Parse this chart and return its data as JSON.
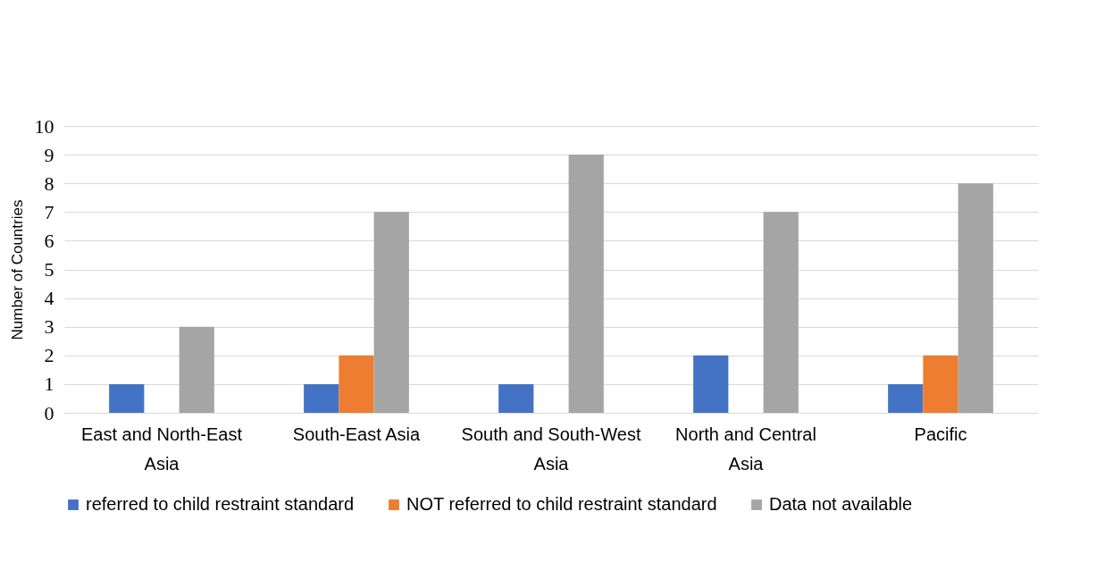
{
  "chart_data": {
    "type": "bar",
    "ylabel": "Number of Countries",
    "categories": [
      "East and North-East Asia",
      "South-East Asia",
      "South and South-West Asia",
      "North and Central Asia",
      "Pacific"
    ],
    "series": [
      {
        "name": "referred to child restraint standard",
        "color": "#4472c4",
        "values": [
          1,
          1,
          1,
          2,
          1
        ]
      },
      {
        "name": "NOT referred to child restraint standard",
        "color": "#ed7d31",
        "values": [
          0,
          2,
          0,
          0,
          2
        ]
      },
      {
        "name": "Data not available",
        "color": "#a5a5a5",
        "values": [
          3,
          7,
          9,
          7,
          8
        ]
      }
    ],
    "ylim": [
      0,
      10
    ],
    "yticks": [
      0,
      1,
      2,
      3,
      4,
      5,
      6,
      7,
      8,
      9,
      10
    ],
    "grid": "y",
    "legend": "bottom"
  }
}
